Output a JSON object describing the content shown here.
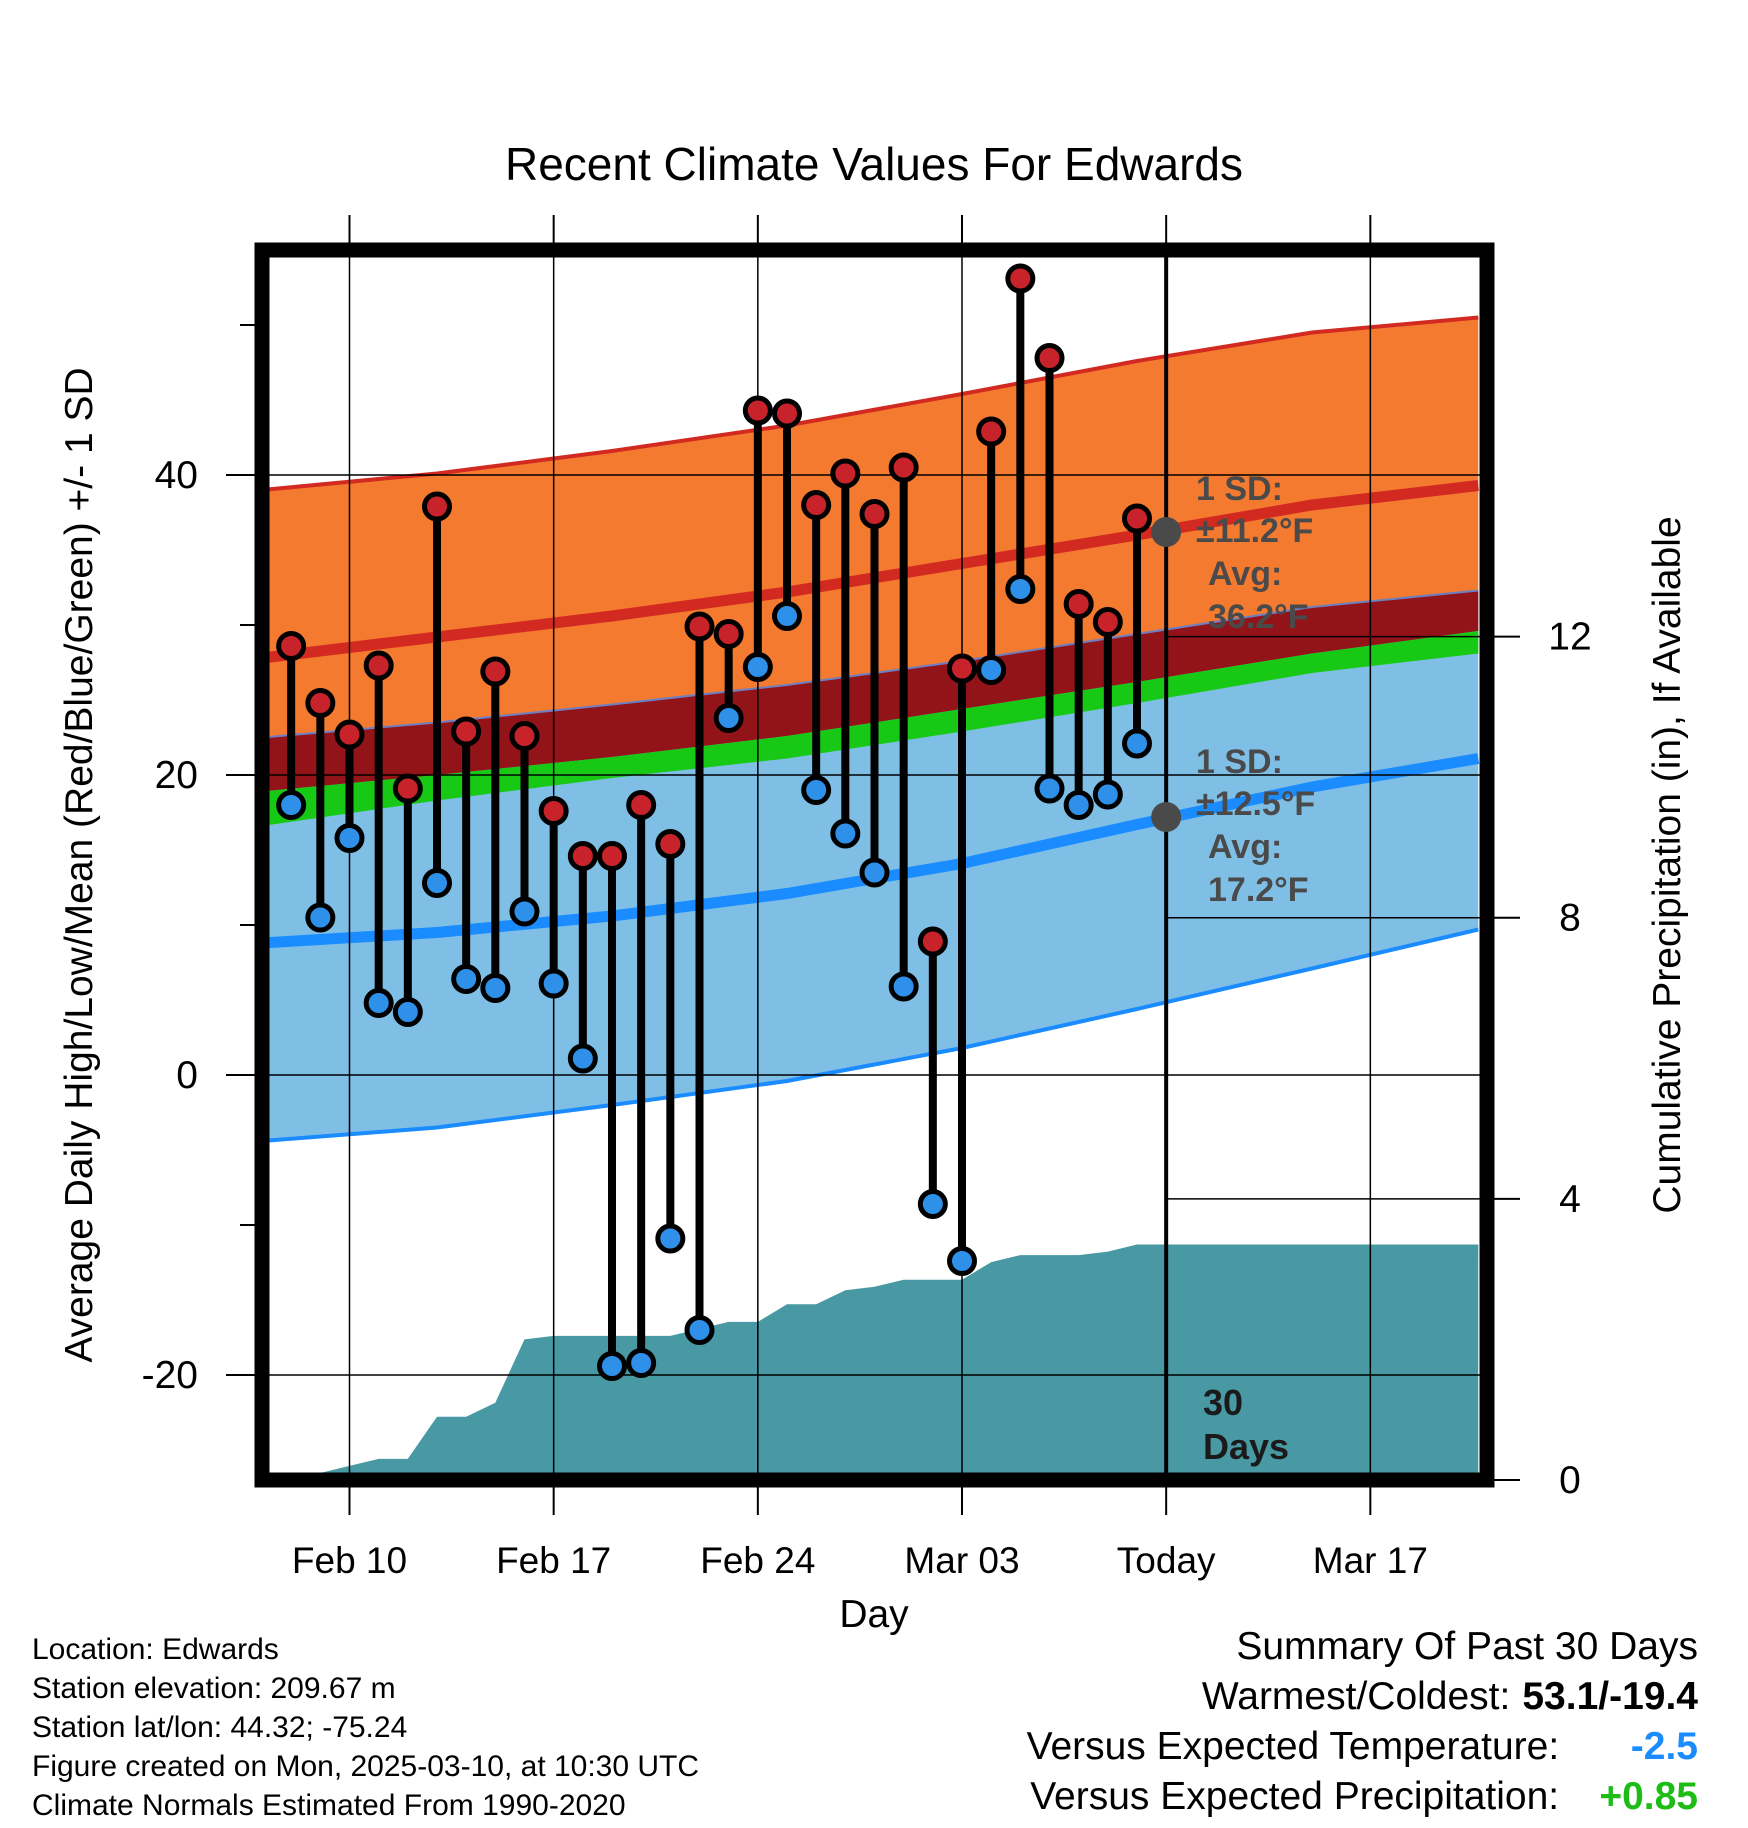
{
  "chart_data": {
    "type": "line",
    "title": "Recent Climate Values For Edwards",
    "xlabel": "Day",
    "ylabel_left": "Average Daily High/Low/Mean (Red/Blue/Green) +/- 1 SD",
    "ylabel_right": "Cumulative Precipitation (in), If Available",
    "x_range_days": [
      0,
      42
    ],
    "x_ticks": [
      {
        "day": 3,
        "label": "Feb 10"
      },
      {
        "day": 10,
        "label": "Feb 17"
      },
      {
        "day": 17,
        "label": "Feb 24"
      },
      {
        "day": 24,
        "label": "Mar 03"
      },
      {
        "day": 31,
        "label": "Today"
      },
      {
        "day": 38,
        "label": "Mar 17"
      }
    ],
    "ylim_left": [
      -27,
      55
    ],
    "y_ticks_left": [
      -20,
      0,
      20,
      40
    ],
    "ylim_right": [
      0,
      17.5
    ],
    "y_ticks_right": [
      0,
      4,
      8,
      12
    ],
    "today_day": 31,
    "today_label": "30\nDays",
    "normals": {
      "days": [
        0,
        6,
        12,
        18,
        24,
        30,
        36,
        41.7
      ],
      "high_plus_sd": [
        39,
        40.1,
        41.6,
        43.3,
        45.4,
        47.6,
        49.5,
        50.5
      ],
      "high_mean": [
        27.8,
        29.2,
        30.6,
        32.2,
        34.1,
        36,
        38,
        39.3
      ],
      "high_minus_sd": [
        16.6,
        18.3,
        19.8,
        21.1,
        22.9,
        24.8,
        26.8,
        28.1
      ],
      "mean_upper": [
        22.5,
        23.5,
        24.7,
        26,
        27.6,
        29.4,
        31.2,
        32.3
      ],
      "mean_lower": [
        18.9,
        20,
        21.2,
        22.6,
        24.4,
        26.2,
        28.1,
        29.6
      ],
      "low_plus_sd": [
        22.5,
        23.5,
        24.7,
        26,
        27.6,
        29.4,
        31.2,
        32.3
      ],
      "low_mean": [
        8.8,
        9.5,
        10.6,
        12.1,
        14.1,
        16.7,
        19.2,
        21.1
      ],
      "low_minus_sd": [
        -4.4,
        -3.5,
        -2,
        -0.4,
        1.8,
        4.4,
        7.1,
        9.7
      ]
    },
    "series": [
      {
        "name": "Daily High",
        "days": [
          1,
          2,
          3,
          4,
          5,
          6,
          7,
          8,
          9,
          10,
          11,
          12,
          13,
          14,
          15,
          16,
          17,
          18,
          19,
          20,
          21,
          22,
          23,
          24,
          25,
          26,
          27,
          28,
          29,
          30
        ],
        "values": [
          28.6,
          24.8,
          22.7,
          27.3,
          19.1,
          37.9,
          22.9,
          26.9,
          22.6,
          17.6,
          14.6,
          14.6,
          18,
          15.4,
          29.9,
          29.4,
          44.3,
          44.1,
          38,
          40.1,
          37.4,
          40.5,
          8.9,
          27.1,
          42.9,
          53.1,
          47.8,
          31.4,
          30.2,
          37.1
        ]
      },
      {
        "name": "Daily Low",
        "days": [
          1,
          2,
          3,
          4,
          5,
          6,
          7,
          8,
          9,
          10,
          11,
          12,
          13,
          14,
          15,
          16,
          17,
          18,
          19,
          20,
          21,
          22,
          23,
          24,
          25,
          26,
          27,
          28,
          29,
          30
        ],
        "values": [
          18,
          10.5,
          15.8,
          4.8,
          4.2,
          12.8,
          6.4,
          5.8,
          10.9,
          6.1,
          1.1,
          -19.4,
          -19.2,
          -10.9,
          -17,
          23.8,
          27.2,
          30.6,
          19,
          16.1,
          13.5,
          5.9,
          -8.6,
          -12.4,
          27,
          32.4,
          19.1,
          18,
          18.7,
          22.1
        ]
      },
      {
        "name": "Cumulative Precipitation",
        "days": [
          0,
          1,
          1.2,
          2,
          3,
          4,
          5,
          6,
          7,
          8,
          9,
          10,
          11,
          12,
          13,
          14,
          15,
          16,
          17,
          18,
          19,
          20,
          21,
          22,
          23,
          24,
          25,
          26,
          27,
          28,
          29,
          30,
          31,
          41.7
        ],
        "values": [
          0,
          0,
          0.05,
          0.1,
          0.2,
          0.3,
          0.3,
          0.9,
          0.9,
          1.1,
          2,
          2.05,
          2.05,
          2.05,
          2.05,
          2.05,
          2.15,
          2.25,
          2.25,
          2.5,
          2.5,
          2.7,
          2.75,
          2.85,
          2.85,
          2.85,
          3.1,
          3.2,
          3.2,
          3.2,
          3.25,
          3.35,
          3.35,
          3.35
        ]
      }
    ],
    "annotations": {
      "high_sd_label": "1 SD:",
      "high_sd_value": "±11.2°F",
      "high_avg_label": "Avg:",
      "high_avg_value": "36.2°F",
      "high_avg": 36.2,
      "low_sd_label": "1 SD:",
      "low_sd_value": "±12.5°F",
      "low_avg_label": "Avg:",
      "low_avg_value": "17.2°F",
      "low_avg": 17.2
    },
    "colors": {
      "high_band": "#f47a30",
      "high_line": "#d22a20",
      "mean_band_upper": "#921419",
      "mean_band_green": "#17c914",
      "low_band": "#7fbfe6",
      "low_line": "#1a8cff",
      "precip": "#4899a3",
      "high_marker": "#c8222a",
      "low_marker": "#2e90e8",
      "annotation": "#4a4a4a"
    }
  },
  "footer": {
    "location": "Location: Edwards",
    "elevation": "Station elevation: 209.67 m",
    "latlon": "Station lat/lon: 44.32; -75.24",
    "created": "Figure created on Mon, 2025-03-10, at 10:30 UTC",
    "normals": "Climate Normals Estimated From 1990-2020"
  },
  "summary": {
    "title": "Summary Of Past 30 Days",
    "warm_cold_label": "Warmest/Coldest:",
    "warm_cold_value": "53.1/-19.4",
    "temp_label": "Versus Expected Temperature:",
    "temp_value": "-2.5",
    "temp_color": "#1a8cff",
    "precip_label": "Versus Expected Precipitation:",
    "precip_value": "+0.85",
    "precip_color": "#1dbd16"
  }
}
